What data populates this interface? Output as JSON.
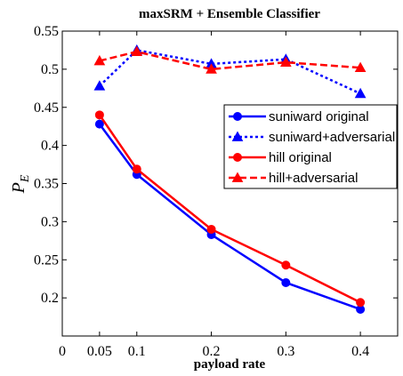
{
  "chart_data": {
    "type": "line",
    "title": "maxSRM + Ensemble Classifier",
    "xlabel": "payload rate",
    "ylabel_main": "P",
    "ylabel_sub": "E",
    "xlim": [
      0,
      0.45
    ],
    "ylim": [
      0.15,
      0.55
    ],
    "xticks": [
      0,
      0.05,
      0.1,
      0.2,
      0.3,
      0.4
    ],
    "xtick_labels": [
      "0",
      "0.05",
      "0.1",
      "0.2",
      "0.3",
      "0.4"
    ],
    "yticks": [
      0.2,
      0.25,
      0.3,
      0.35,
      0.4,
      0.45,
      0.5,
      0.55
    ],
    "ytick_labels": [
      "0.2",
      "0.25",
      "0.3",
      "0.35",
      "0.4",
      "0.45",
      "0.5",
      "0.55"
    ],
    "grid": false,
    "legend_position": "middle-right",
    "x": [
      0.05,
      0.1,
      0.2,
      0.3,
      0.4
    ],
    "series": [
      {
        "name": "suniward original",
        "values": [
          0.428,
          0.362,
          0.283,
          0.22,
          0.185
        ],
        "color": "#0000ff",
        "linestyle": "solid",
        "marker": "circle"
      },
      {
        "name": "suniward+adversarial",
        "values": [
          0.478,
          0.525,
          0.507,
          0.513,
          0.468
        ],
        "color": "#0000ff",
        "linestyle": "dotted",
        "marker": "triangle"
      },
      {
        "name": "hill original",
        "values": [
          0.44,
          0.369,
          0.29,
          0.243,
          0.194
        ],
        "color": "#ff0000",
        "linestyle": "solid",
        "marker": "circle"
      },
      {
        "name": "hill+adversarial",
        "values": [
          0.511,
          0.523,
          0.5,
          0.509,
          0.502
        ],
        "color": "#ff0000",
        "linestyle": "dashed",
        "marker": "triangle"
      }
    ]
  }
}
